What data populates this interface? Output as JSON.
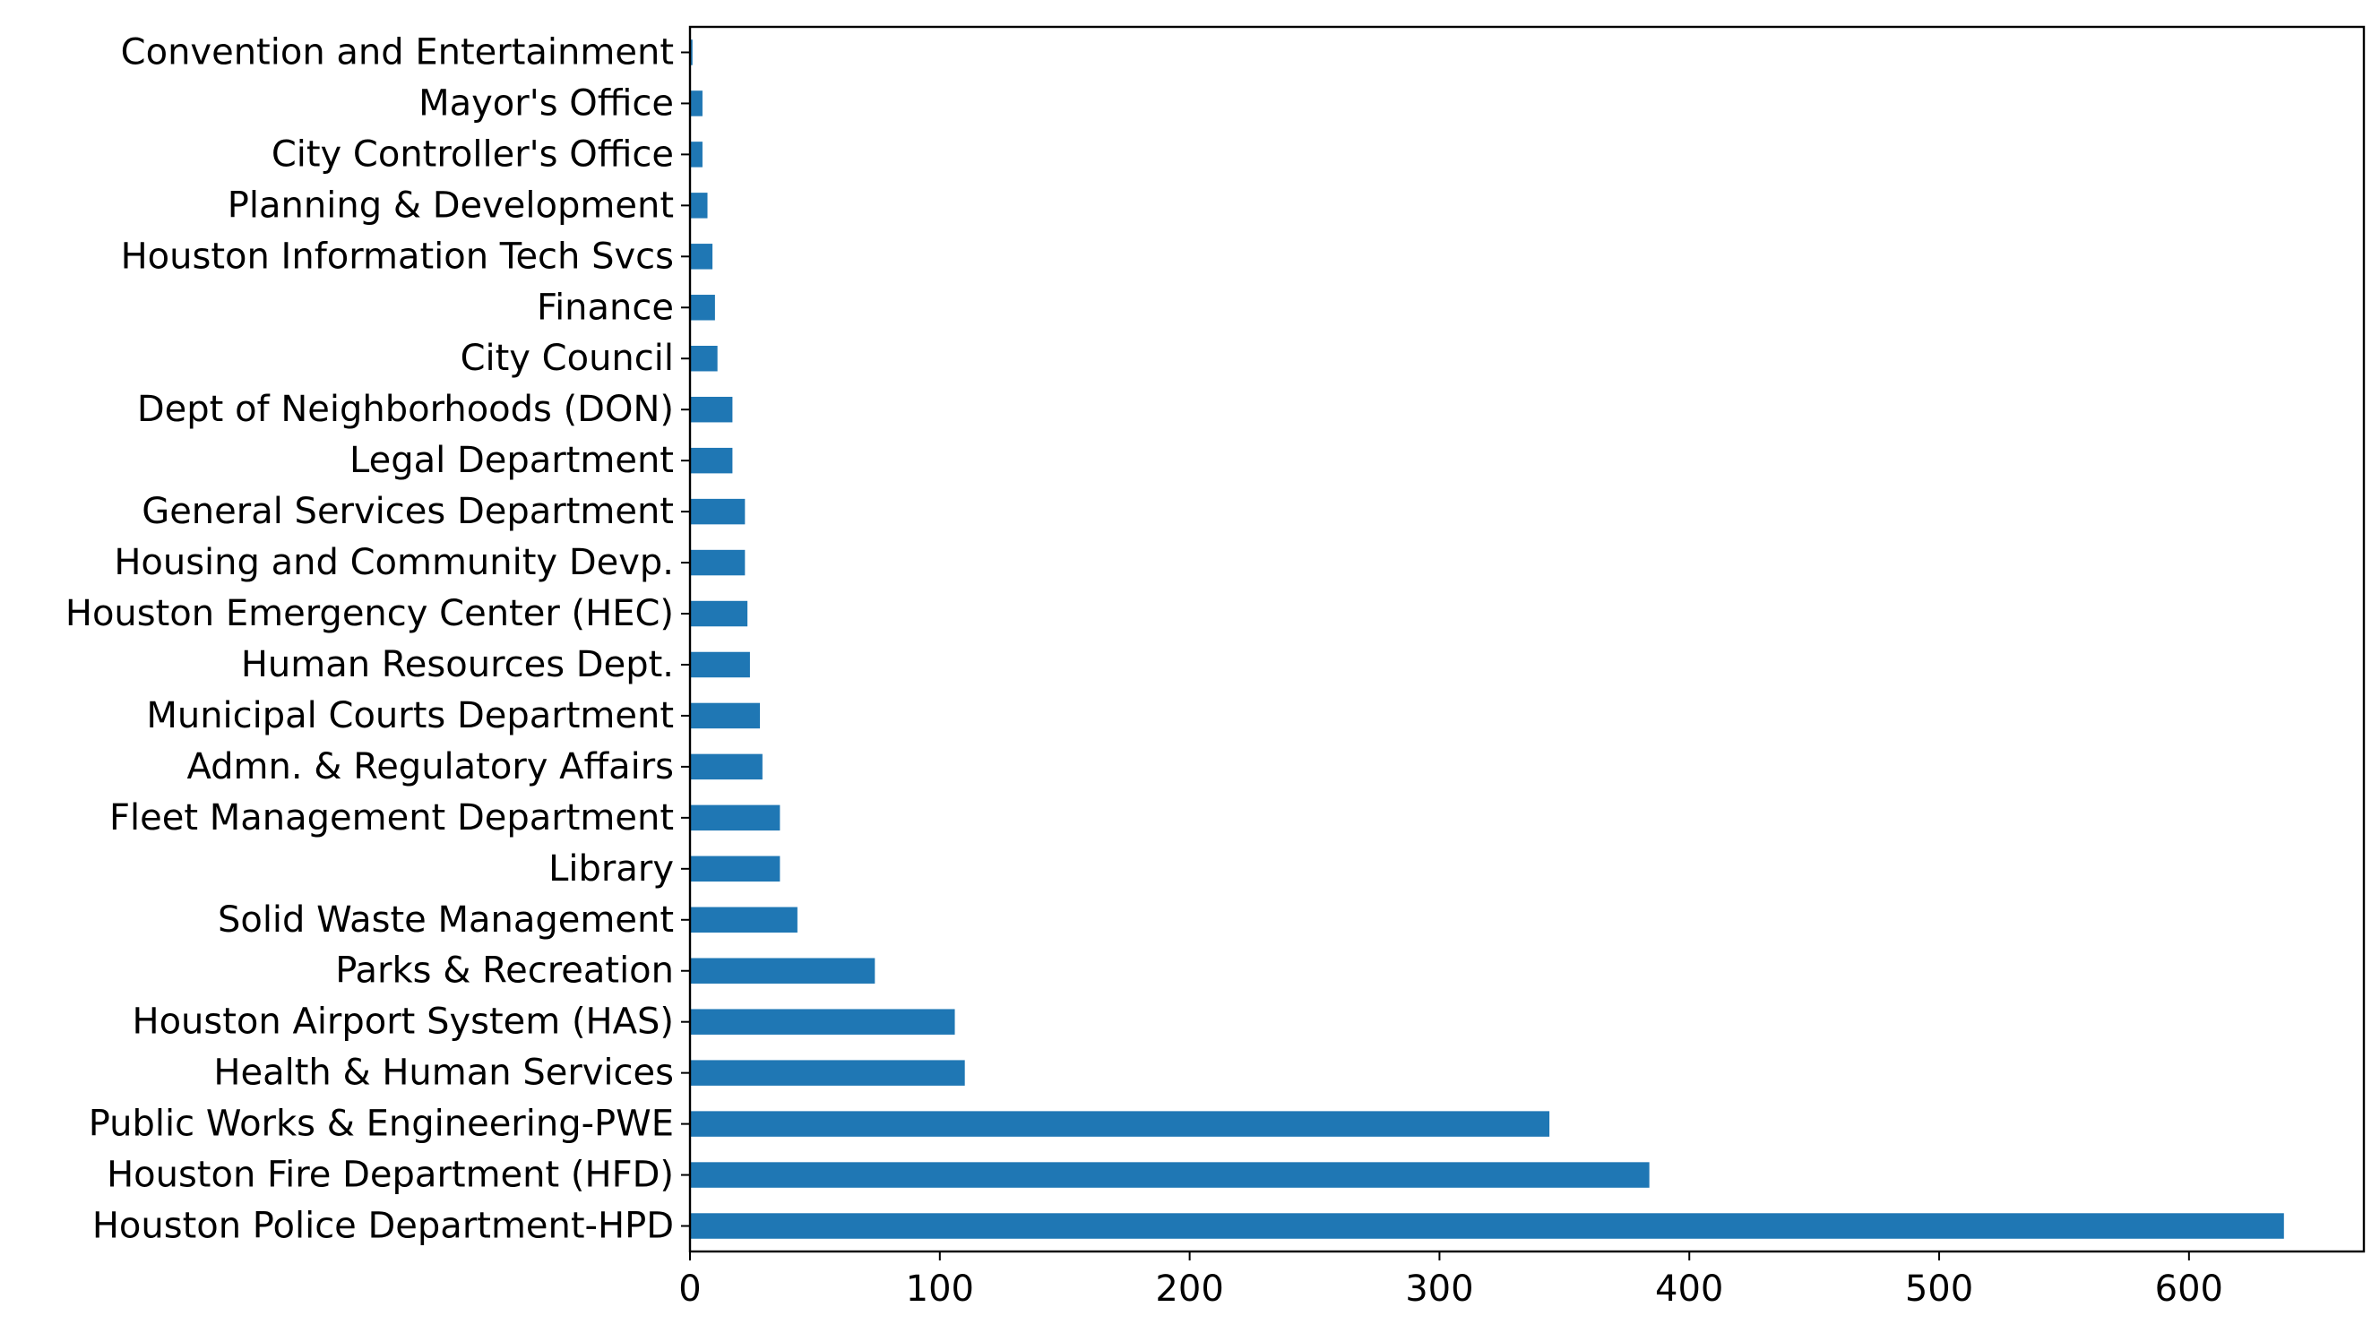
{
  "chart_data": {
    "type": "bar",
    "orientation": "horizontal",
    "title": "",
    "xlabel": "",
    "ylabel": "",
    "categories": [
      "Houston Police Department-HPD",
      "Houston Fire Department (HFD)",
      "Public Works & Engineering-PWE",
      "Health & Human Services",
      "Houston Airport System (HAS)",
      "Parks & Recreation",
      "Solid Waste Management",
      "Library",
      "Fleet Management Department",
      "Admn. & Regulatory Affairs",
      "Municipal Courts Department",
      "Human Resources Dept.",
      "Houston Emergency Center (HEC)",
      "Housing and Community Devp.",
      "General Services Department",
      "Legal Department",
      "Dept of Neighborhoods (DON)",
      "City Council",
      "Finance",
      "Houston Information Tech Svcs",
      "Planning & Development",
      "City Controller's Office",
      "Mayor's Office",
      "Convention and Entertainment"
    ],
    "values": [
      638,
      384,
      344,
      110,
      106,
      74,
      43,
      36,
      36,
      29,
      28,
      24,
      23,
      22,
      22,
      17,
      17,
      11,
      10,
      9,
      7,
      5,
      5,
      1
    ],
    "xlim": [
      0,
      670
    ],
    "xticks": [
      0,
      100,
      200,
      300,
      400,
      500,
      600
    ],
    "grid": false,
    "legend": "none",
    "bar_color": "#1f77b4"
  }
}
